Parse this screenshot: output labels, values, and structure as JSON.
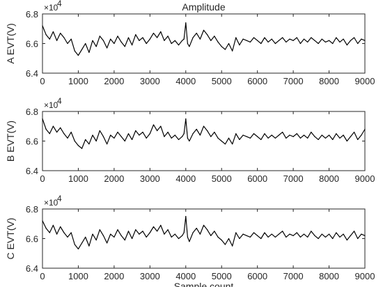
{
  "chart_data": [
    {
      "type": "line",
      "title": "Amplitude",
      "xlabel": "",
      "ylabel": "A EVT(V)",
      "y_exponent_label": "×10",
      "y_exponent_power": "4",
      "xlim": [
        0,
        9000
      ],
      "ylim": [
        6.4,
        6.8
      ],
      "x_ticks": [
        "0",
        "1000",
        "2000",
        "3000",
        "4000",
        "5000",
        "6000",
        "7000",
        "8000",
        "9000"
      ],
      "y_ticks": [
        "6.4",
        "6.6",
        "6.8"
      ],
      "grid": false,
      "series": [
        {
          "x": [
            0,
            100,
            200,
            300,
            400,
            500,
            600,
            700,
            800,
            900,
            1000,
            1100,
            1200,
            1300,
            1400,
            1500,
            1600,
            1700,
            1800,
            1900,
            2000,
            2100,
            2200,
            2300,
            2400,
            2500,
            2600,
            2700,
            2800,
            2900,
            3000,
            3100,
            3200,
            3300,
            3400,
            3500,
            3600,
            3700,
            3800,
            3900,
            3950,
            4000,
            4050,
            4100,
            4200,
            4300,
            4400,
            4500,
            4600,
            4700,
            4800,
            4900,
            5000,
            5100,
            5200,
            5300,
            5400,
            5500,
            5600,
            5700,
            5800,
            5900,
            6000,
            6100,
            6200,
            6300,
            6400,
            6500,
            6600,
            6700,
            6800,
            6900,
            7000,
            7100,
            7200,
            7300,
            7400,
            7500,
            7600,
            7700,
            7800,
            7900,
            8000,
            8100,
            8200,
            8300,
            8400,
            8500,
            8600,
            8700,
            8800,
            8900,
            9000
          ],
          "y": [
            6.72,
            6.66,
            6.63,
            6.68,
            6.62,
            6.67,
            6.64,
            6.6,
            6.63,
            6.55,
            6.52,
            6.56,
            6.6,
            6.54,
            6.62,
            6.58,
            6.65,
            6.62,
            6.57,
            6.63,
            6.6,
            6.65,
            6.61,
            6.58,
            6.64,
            6.59,
            6.66,
            6.62,
            6.64,
            6.6,
            6.63,
            6.67,
            6.64,
            6.68,
            6.62,
            6.65,
            6.6,
            6.62,
            6.59,
            6.62,
            6.63,
            6.74,
            6.6,
            6.58,
            6.64,
            6.67,
            6.63,
            6.69,
            6.66,
            6.62,
            6.65,
            6.61,
            6.58,
            6.56,
            6.6,
            6.55,
            6.64,
            6.59,
            6.63,
            6.62,
            6.61,
            6.64,
            6.62,
            6.6,
            6.64,
            6.61,
            6.63,
            6.6,
            6.62,
            6.64,
            6.61,
            6.63,
            6.62,
            6.64,
            6.6,
            6.63,
            6.61,
            6.64,
            6.62,
            6.6,
            6.63,
            6.61,
            6.62,
            6.6,
            6.64,
            6.61,
            6.63,
            6.59,
            6.62,
            6.64,
            6.6,
            6.63,
            6.62
          ]
        }
      ]
    },
    {
      "type": "line",
      "title": "",
      "xlabel": "",
      "ylabel": "B EVT(V)",
      "y_exponent_label": "×10",
      "y_exponent_power": "4",
      "xlim": [
        0,
        9000
      ],
      "ylim": [
        6.4,
        6.8
      ],
      "x_ticks": [
        "0",
        "1000",
        "2000",
        "3000",
        "4000",
        "5000",
        "6000",
        "7000",
        "8000",
        "9000"
      ],
      "y_ticks": [
        "6.4",
        "6.6",
        "6.8"
      ],
      "grid": false,
      "series": [
        {
          "x": [
            0,
            100,
            200,
            300,
            400,
            500,
            600,
            700,
            800,
            900,
            1000,
            1100,
            1200,
            1300,
            1400,
            1500,
            1600,
            1700,
            1800,
            1900,
            2000,
            2100,
            2200,
            2300,
            2400,
            2500,
            2600,
            2700,
            2800,
            2900,
            3000,
            3100,
            3200,
            3300,
            3400,
            3500,
            3600,
            3700,
            3800,
            3900,
            3950,
            4000,
            4050,
            4100,
            4200,
            4300,
            4400,
            4500,
            4600,
            4700,
            4800,
            4900,
            5000,
            5100,
            5200,
            5300,
            5400,
            5500,
            5600,
            5700,
            5800,
            5900,
            6000,
            6100,
            6200,
            6300,
            6400,
            6500,
            6600,
            6700,
            6800,
            6900,
            7000,
            7100,
            7200,
            7300,
            7400,
            7500,
            7600,
            7700,
            7800,
            7900,
            8000,
            8100,
            8200,
            8300,
            8400,
            8500,
            8600,
            8700,
            8800,
            8900,
            9000
          ],
          "y": [
            6.75,
            6.68,
            6.65,
            6.7,
            6.66,
            6.69,
            6.65,
            6.62,
            6.66,
            6.6,
            6.57,
            6.55,
            6.61,
            6.58,
            6.64,
            6.6,
            6.67,
            6.63,
            6.58,
            6.64,
            6.62,
            6.66,
            6.63,
            6.6,
            6.65,
            6.61,
            6.67,
            6.64,
            6.66,
            6.62,
            6.65,
            6.71,
            6.67,
            6.7,
            6.63,
            6.66,
            6.62,
            6.64,
            6.61,
            6.63,
            6.65,
            6.75,
            6.62,
            6.6,
            6.65,
            6.68,
            6.64,
            6.7,
            6.67,
            6.63,
            6.66,
            6.62,
            6.6,
            6.58,
            6.62,
            6.58,
            6.65,
            6.61,
            6.64,
            6.63,
            6.62,
            6.65,
            6.63,
            6.61,
            6.65,
            6.62,
            6.64,
            6.62,
            6.64,
            6.66,
            6.62,
            6.64,
            6.63,
            6.65,
            6.62,
            6.64,
            6.62,
            6.66,
            6.63,
            6.61,
            6.64,
            6.62,
            6.64,
            6.61,
            6.65,
            6.62,
            6.64,
            6.6,
            6.63,
            6.66,
            6.61,
            6.64,
            6.68
          ]
        }
      ]
    },
    {
      "type": "line",
      "title": "",
      "xlabel": "Sample count",
      "ylabel": "C EVT(V)",
      "y_exponent_label": "×10",
      "y_exponent_power": "4",
      "xlim": [
        0,
        9000
      ],
      "ylim": [
        6.4,
        6.8
      ],
      "x_ticks": [
        "0",
        "1000",
        "2000",
        "3000",
        "4000",
        "5000",
        "6000",
        "7000",
        "8000",
        "9000"
      ],
      "y_ticks": [
        "6.4",
        "6.6",
        "6.8"
      ],
      "grid": false,
      "series": [
        {
          "x": [
            0,
            100,
            200,
            300,
            400,
            500,
            600,
            700,
            800,
            900,
            1000,
            1100,
            1200,
            1300,
            1400,
            1500,
            1600,
            1700,
            1800,
            1900,
            2000,
            2100,
            2200,
            2300,
            2400,
            2500,
            2600,
            2700,
            2800,
            2900,
            3000,
            3100,
            3200,
            3300,
            3400,
            3500,
            3600,
            3700,
            3800,
            3900,
            3950,
            4000,
            4050,
            4100,
            4200,
            4300,
            4400,
            4500,
            4600,
            4700,
            4800,
            4900,
            5000,
            5100,
            5200,
            5300,
            5400,
            5500,
            5600,
            5700,
            5800,
            5900,
            6000,
            6100,
            6200,
            6300,
            6400,
            6500,
            6600,
            6700,
            6800,
            6900,
            7000,
            7100,
            7200,
            7300,
            7400,
            7500,
            7600,
            7700,
            7800,
            7900,
            8000,
            8100,
            8200,
            8300,
            8400,
            8500,
            8600,
            8700,
            8800,
            8900,
            9000
          ],
          "y": [
            6.72,
            6.67,
            6.64,
            6.69,
            6.63,
            6.68,
            6.64,
            6.61,
            6.64,
            6.56,
            6.53,
            6.57,
            6.61,
            6.55,
            6.63,
            6.59,
            6.66,
            6.62,
            6.57,
            6.63,
            6.61,
            6.66,
            6.62,
            6.59,
            6.65,
            6.6,
            6.66,
            6.63,
            6.65,
            6.61,
            6.64,
            6.68,
            6.65,
            6.69,
            6.63,
            6.66,
            6.61,
            6.63,
            6.6,
            6.62,
            6.64,
            6.75,
            6.61,
            6.58,
            6.64,
            6.67,
            6.63,
            6.69,
            6.66,
            6.62,
            6.65,
            6.61,
            6.59,
            6.56,
            6.6,
            6.55,
            6.64,
            6.6,
            6.63,
            6.62,
            6.61,
            6.64,
            6.62,
            6.6,
            6.64,
            6.61,
            6.63,
            6.61,
            6.63,
            6.65,
            6.61,
            6.63,
            6.62,
            6.64,
            6.61,
            6.63,
            6.61,
            6.65,
            6.62,
            6.6,
            6.63,
            6.61,
            6.63,
            6.6,
            6.64,
            6.61,
            6.63,
            6.59,
            6.62,
            6.65,
            6.6,
            6.63,
            6.62
          ]
        }
      ]
    }
  ]
}
